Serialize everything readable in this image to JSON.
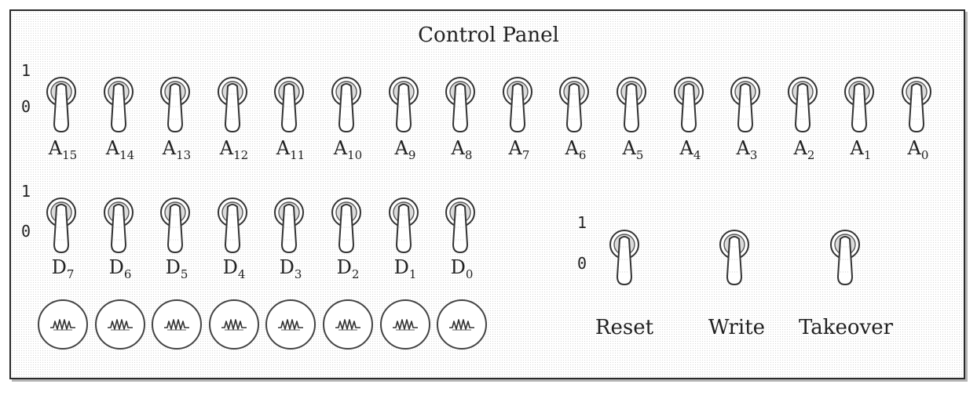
{
  "panel": {
    "title": "Control Panel",
    "level_high": "1",
    "level_low": "0"
  },
  "address_switches": [
    {
      "letter": "A",
      "index": "15"
    },
    {
      "letter": "A",
      "index": "14"
    },
    {
      "letter": "A",
      "index": "13"
    },
    {
      "letter": "A",
      "index": "12"
    },
    {
      "letter": "A",
      "index": "11"
    },
    {
      "letter": "A",
      "index": "10"
    },
    {
      "letter": "A",
      "index": "9"
    },
    {
      "letter": "A",
      "index": "8"
    },
    {
      "letter": "A",
      "index": "7"
    },
    {
      "letter": "A",
      "index": "6"
    },
    {
      "letter": "A",
      "index": "5"
    },
    {
      "letter": "A",
      "index": "4"
    },
    {
      "letter": "A",
      "index": "3"
    },
    {
      "letter": "A",
      "index": "2"
    },
    {
      "letter": "A",
      "index": "1"
    },
    {
      "letter": "A",
      "index": "0"
    }
  ],
  "data_switches": [
    {
      "letter": "D",
      "index": "7"
    },
    {
      "letter": "D",
      "index": "6"
    },
    {
      "letter": "D",
      "index": "5"
    },
    {
      "letter": "D",
      "index": "4"
    },
    {
      "letter": "D",
      "index": "3"
    },
    {
      "letter": "D",
      "index": "2"
    },
    {
      "letter": "D",
      "index": "1"
    },
    {
      "letter": "D",
      "index": "0"
    }
  ],
  "lamps_count": 8,
  "control_switches": [
    {
      "label": "Reset"
    },
    {
      "label": "Write"
    },
    {
      "label": "Takeover"
    }
  ],
  "colors": {
    "ink": "#222222",
    "panel_border": "#2a2a2a",
    "background": "#ffffff"
  }
}
